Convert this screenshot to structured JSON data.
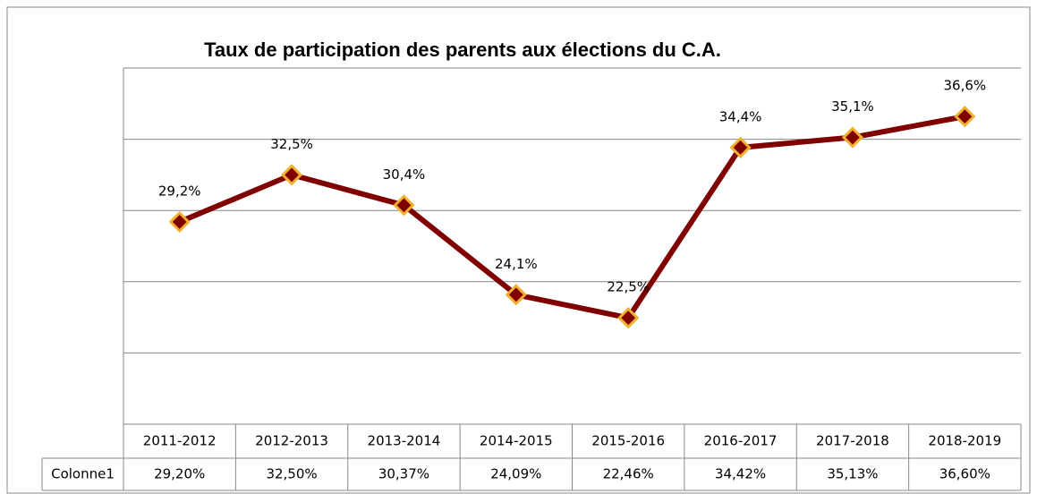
{
  "chart_data": {
    "type": "line",
    "title": "Taux de participation des parents aux élections du C.A.",
    "categories": [
      "2011-2012",
      "2012-2013",
      "2013-2014",
      "2014-2015",
      "2015-2016",
      "2016-2017",
      "2017-2018",
      "2018-2019"
    ],
    "series": [
      {
        "name": "Colonne1",
        "color": "#800000",
        "values": [
          29.2,
          32.5,
          30.37,
          24.09,
          22.46,
          34.42,
          35.13,
          36.6
        ],
        "value_labels": [
          "29,2%",
          "32,5%",
          "30,4%",
          "24,1%",
          "22,5%",
          "34,4%",
          "35,1%",
          "36,6%"
        ],
        "table_labels": [
          "29,20%",
          "32,50%",
          "30,37%",
          "24,09%",
          "22,46%",
          "34,42%",
          "35,13%",
          "36,60%"
        ]
      }
    ],
    "ylim": [
      15,
      40
    ],
    "yticks": [
      15,
      20,
      25,
      30,
      35,
      40
    ],
    "grid": true
  }
}
